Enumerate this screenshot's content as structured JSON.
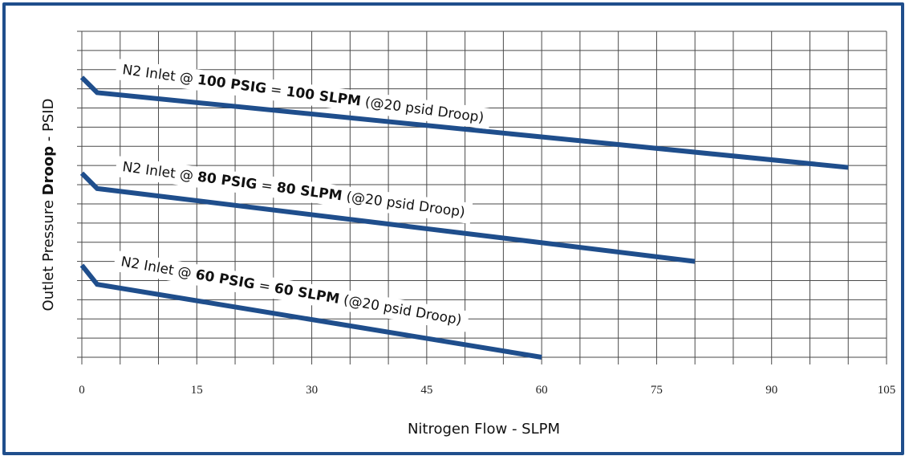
{
  "chart_data": {
    "type": "line",
    "xlabel": "Nitrogen Flow - SLPM",
    "ylabel": {
      "prefix": "Outlet Pressure ",
      "bold": "Droop",
      "suffix": " - PSID"
    },
    "x_ticks": [
      "0",
      "15",
      "30",
      "45",
      "60",
      "75",
      "90",
      "105"
    ],
    "xlim": [
      0,
      105
    ],
    "ylim": [
      0,
      17
    ],
    "y_ticks_labeled": false,
    "grid": true,
    "line_color": "#1f4e8c",
    "series": [
      {
        "name": "N2 Inlet @ 100 PSIG = 100 SLPM (@20 psid Droop)",
        "label_parts": [
          {
            "text": "N2 Inlet @ ",
            "bold": false
          },
          {
            "text": "100 PSIG",
            "bold": true
          },
          {
            "text": " = ",
            "bold": false
          },
          {
            "text": "100 SLPM",
            "bold": true
          },
          {
            "text": " (@20 psid Droop)",
            "bold": false
          }
        ],
        "x": [
          0,
          2,
          100
        ],
        "y": [
          14.6,
          13.8,
          9.9
        ]
      },
      {
        "name": "N2 Inlet @ 80 PSIG = 80 SLPM (@20 psid Droop)",
        "label_parts": [
          {
            "text": "N2 Inlet @ ",
            "bold": false
          },
          {
            "text": "80 PSIG",
            "bold": true
          },
          {
            "text": " = ",
            "bold": false
          },
          {
            "text": "80 SLPM",
            "bold": true
          },
          {
            "text": " (@20 psid Droop)",
            "bold": false
          }
        ],
        "x": [
          0,
          2,
          80
        ],
        "y": [
          9.6,
          8.8,
          5.0
        ]
      },
      {
        "name": "N2 Inlet @ 60 PSIG = 60 SLPM (@20 psid Droop)",
        "label_parts": [
          {
            "text": "N2 Inlet @ ",
            "bold": false
          },
          {
            "text": "60 PSIG",
            "bold": true
          },
          {
            "text": " = ",
            "bold": false
          },
          {
            "text": "60 SLPM",
            "bold": true
          },
          {
            "text": " (@20 psid Droop)",
            "bold": false
          }
        ],
        "x": [
          0,
          2,
          60
        ],
        "y": [
          4.8,
          3.8,
          0.0
        ]
      }
    ]
  }
}
